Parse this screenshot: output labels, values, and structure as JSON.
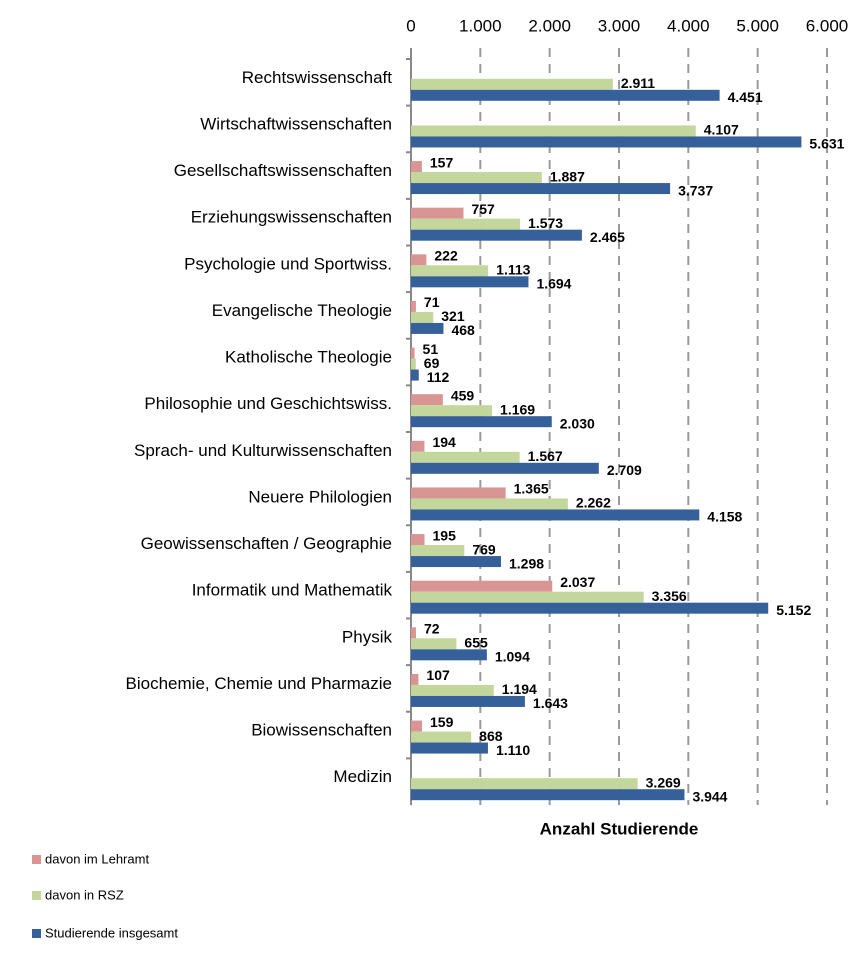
{
  "chart_data": {
    "type": "bar",
    "orientation": "horizontal",
    "x_axis_label": "Anzahl Studierende",
    "categories": [
      "Rechtswissenschaft",
      "Wirtschaftwissenschaften",
      "Gesellschaftswissenschaften",
      "Erziehungswissenschaften",
      "Psychologie und Sportwiss.",
      "Evangelische Theologie",
      "Katholische Theologie",
      "Philosophie und Geschichtswiss.",
      "Sprach- und Kulturwissenschaften",
      "Neuere Philologien",
      "Geowissenschaften / Geographie",
      "Informatik und Mathematik",
      "Physik",
      "Biochemie, Chemie und Pharmazie",
      "Biowissenschaften",
      "Medizin"
    ],
    "series": [
      {
        "name": "davon im Lehramt",
        "color": "#d99594",
        "values": [
          null,
          null,
          157,
          757,
          222,
          71,
          51,
          459,
          194,
          1365,
          195,
          2037,
          72,
          107,
          159,
          null
        ],
        "value_labels": [
          null,
          null,
          "157",
          "757",
          "222",
          "71",
          "51",
          "459",
          "194",
          "1.365",
          "195",
          "2.037",
          "72",
          "107",
          "159",
          null
        ]
      },
      {
        "name": "davon in RSZ",
        "color": "#c3d69b",
        "values": [
          2911,
          4107,
          1887,
          1573,
          1113,
          321,
          69,
          1169,
          1567,
          2262,
          769,
          3356,
          655,
          1194,
          868,
          3269
        ],
        "value_labels": [
          "2.911",
          "4.107",
          "1.887",
          "1.573",
          "1.113",
          "321",
          "69",
          "1.169",
          "1.567",
          "2.262",
          "769",
          "3.356",
          "655",
          "1.194",
          "868",
          "3.269"
        ]
      },
      {
        "name": "Studierende insgesamt",
        "color": "#36609a",
        "values": [
          4451,
          5631,
          3737,
          2465,
          1694,
          468,
          112,
          2030,
          2709,
          4158,
          1298,
          5152,
          1094,
          1643,
          1110,
          3944
        ],
        "value_labels": [
          "4.451",
          "5.631",
          "3.737",
          "2.465",
          "1.694",
          "468",
          "112",
          "2.030",
          "2.709",
          "4.158",
          "1.298",
          "5.152",
          "1.094",
          "1.643",
          "1.110",
          "3.944"
        ]
      }
    ],
    "xlim": [
      0,
      6000
    ],
    "xticks": [
      0,
      {
        "value": 1000,
        "label": "1.000"
      },
      {
        "value": 2000,
        "label": "2.000"
      },
      {
        "value": 3000,
        "label": "3.000"
      },
      {
        "value": 4000,
        "label": "4.000"
      },
      {
        "value": 5000,
        "label": "5.000"
      },
      {
        "value": 6000,
        "label": "6.000"
      }
    ],
    "grid": true,
    "legend": "bottom-left"
  }
}
